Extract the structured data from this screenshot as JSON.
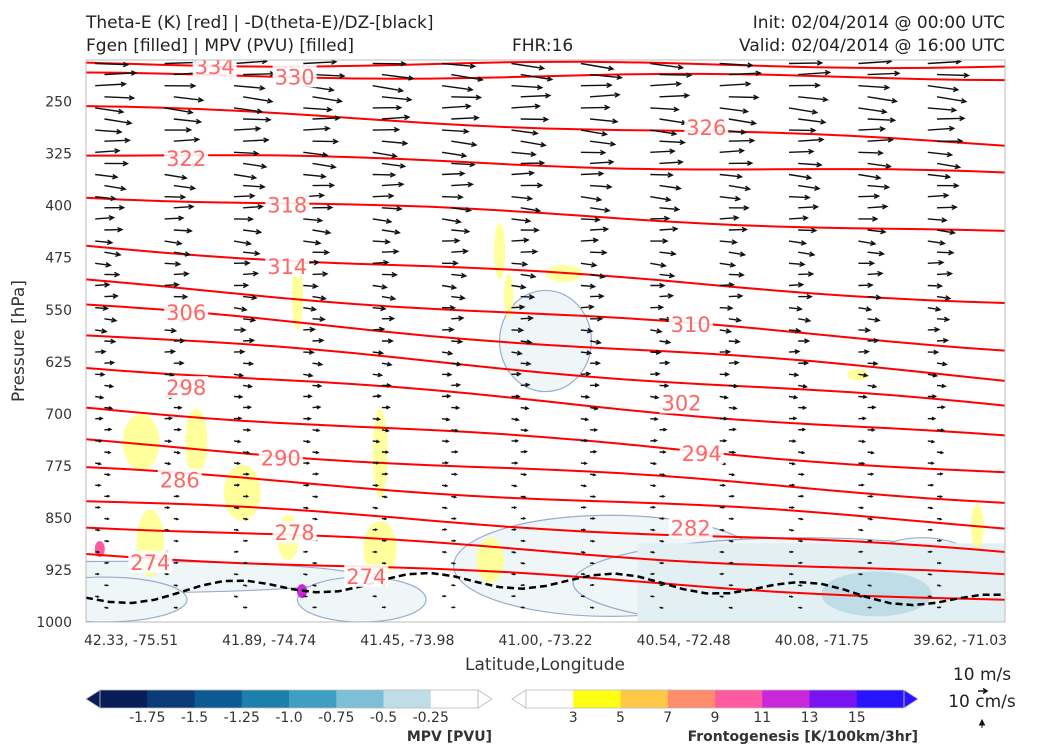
{
  "header": {
    "left_line1": "Theta-E (K) [red] | -D(theta-E)/DZ-[black]",
    "left_line2": "Fgen [filled] | MPV (PVU) [filled]",
    "center": "FHR:16",
    "right_line1": "Init: 02/04/2014 @ 00:00 UTC",
    "right_line2": "Valid: 02/04/2014 @ 16:00 UTC"
  },
  "chart_data": {
    "type": "cross-section",
    "ylabel": "Pressure [hPa]",
    "xlabel": "Latitude,Longitude",
    "y_axis_inverted": true,
    "ylim": [
      1000,
      190
    ],
    "yticks": [
      250,
      325,
      400,
      475,
      550,
      625,
      700,
      775,
      850,
      925,
      1000
    ],
    "xticks": [
      "42.33, -75.51",
      "41.89, -74.74",
      "41.45, -73.98",
      "41.00, -73.22",
      "40.54, -72.48",
      "40.08, -71.75",
      "39.62, -71.03"
    ],
    "theta_e_contours": [
      {
        "value": 334,
        "p_left": 195,
        "p_right": 198
      },
      {
        "value": 330,
        "p_left": 212,
        "p_right": 215
      },
      {
        "value": 326,
        "p_left": 258,
        "p_right": 312
      },
      {
        "value": 322,
        "p_left": 325,
        "p_right": 355
      },
      {
        "value": 318,
        "p_left": 385,
        "p_right": 440
      },
      {
        "value": 314,
        "p_left": 458,
        "p_right": 540
      },
      {
        "value": 310,
        "p_left": 510,
        "p_right": 605
      },
      {
        "value": 306,
        "p_left": 545,
        "p_right": 650
      },
      {
        "value": 302,
        "p_left": 585,
        "p_right": 690
      },
      {
        "value": 298,
        "p_left": 630,
        "p_right": 735
      },
      {
        "value": 294,
        "p_left": 690,
        "p_right": 785
      },
      {
        "value": 290,
        "p_left": 740,
        "p_right": 825
      },
      {
        "value": 286,
        "p_left": 780,
        "p_right": 862
      },
      {
        "value": 282,
        "p_left": 825,
        "p_right": 900
      },
      {
        "value": 278,
        "p_left": 860,
        "p_right": 935
      },
      {
        "value": 274,
        "p_left": 900,
        "p_right": 970
      }
    ],
    "contour_labels": [
      {
        "text": "334",
        "x": 0.14,
        "p": 200
      },
      {
        "text": "330",
        "x": 0.227,
        "p": 215
      },
      {
        "text": "326",
        "x": 0.675,
        "p": 288
      },
      {
        "text": "322",
        "x": 0.109,
        "p": 333
      },
      {
        "text": "318",
        "x": 0.219,
        "p": 400
      },
      {
        "text": "314",
        "x": 0.219,
        "p": 488
      },
      {
        "text": "310",
        "x": 0.658,
        "p": 572
      },
      {
        "text": "306",
        "x": 0.109,
        "p": 555
      },
      {
        "text": "302",
        "x": 0.648,
        "p": 685
      },
      {
        "text": "298",
        "x": 0.109,
        "p": 663
      },
      {
        "text": "294",
        "x": 0.67,
        "p": 758
      },
      {
        "text": "290",
        "x": 0.212,
        "p": 764
      },
      {
        "text": "286",
        "x": 0.102,
        "p": 796
      },
      {
        "text": "282",
        "x": 0.658,
        "p": 865
      },
      {
        "text": "278",
        "x": 0.227,
        "p": 872
      },
      {
        "text": "274",
        "x": 0.07,
        "p": 915
      },
      {
        "text": "274",
        "x": 0.305,
        "p": 935
      }
    ],
    "mpv_colorbar": {
      "title": "MPV [PVU]",
      "ticks": [
        "-1.75",
        "-1.5",
        "-1.25",
        "-1.0",
        "-0.75",
        "-0.5",
        "-0.25"
      ],
      "colors": [
        "#081d58",
        "#0b3a78",
        "#0c5a94",
        "#1d7fab",
        "#3e9fc2",
        "#7cbfd6",
        "#bfdde7",
        "#ffffff"
      ]
    },
    "fgen_colorbar": {
      "title": "Frontogenesis [K/100km/3hr]",
      "ticks": [
        "3",
        "5",
        "7",
        "9",
        "11",
        "13",
        "15"
      ],
      "colors": [
        "#ffffff",
        "#ffff14",
        "#ffc845",
        "#ff8c6a",
        "#ff5aa0",
        "#c828d8",
        "#7814f0",
        "#2814ff"
      ]
    },
    "quiver_key": {
      "label1": "10 m/s",
      "label2": "10 cm/s"
    },
    "colors": {
      "theta_e": "#ff0000",
      "label": "#ff6666",
      "arrows": "#111111",
      "mpv_outline": "#9aaccc",
      "dashed": "#000000"
    }
  }
}
